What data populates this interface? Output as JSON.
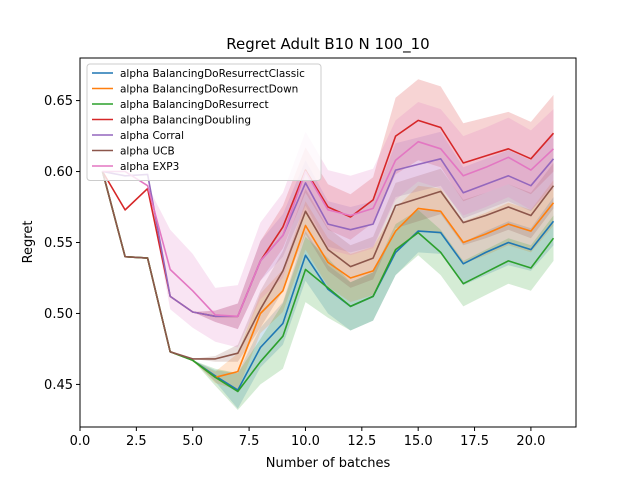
{
  "chart_data": {
    "type": "line",
    "title": "Regret Adult B10 N 100_10",
    "xlabel": "Number of batches",
    "ylabel": "Regret",
    "xlim": [
      0,
      22
    ],
    "ylim": [
      0.42,
      0.68
    ],
    "xticks": [
      0.0,
      2.5,
      5.0,
      7.5,
      10.0,
      12.5,
      15.0,
      17.5,
      20.0
    ],
    "xtick_labels": [
      "0.0",
      "2.5",
      "5.0",
      "7.5",
      "10.0",
      "12.5",
      "15.0",
      "17.5",
      "20.0"
    ],
    "yticks": [
      0.45,
      0.5,
      0.55,
      0.6,
      0.65
    ],
    "ytick_labels": [
      "0.45",
      "0.50",
      "0.55",
      "0.60",
      "0.65"
    ],
    "grid": false,
    "legend_position": "top-left",
    "x": [
      1,
      2,
      3,
      4,
      5,
      6,
      7,
      8,
      9,
      10,
      11,
      12,
      13,
      14,
      15,
      16,
      17,
      18,
      19,
      20,
      21
    ],
    "series": [
      {
        "name": "alpha BalancingDoResurrectClassic",
        "color": "#1f77b4",
        "values": [
          0.6,
          0.54,
          0.539,
          0.473,
          0.467,
          0.456,
          0.446,
          0.476,
          0.493,
          0.541,
          0.517,
          0.505,
          0.512,
          0.543,
          0.558,
          0.557,
          0.535,
          0.543,
          0.55,
          0.545,
          0.565
        ],
        "lower": [
          0.6,
          0.54,
          0.539,
          0.473,
          0.467,
          0.452,
          0.433,
          0.462,
          0.478,
          0.523,
          0.5,
          0.488,
          0.495,
          0.527,
          0.543,
          0.542,
          0.52,
          0.527,
          0.534,
          0.53,
          0.548
        ],
        "upper": [
          0.6,
          0.54,
          0.539,
          0.473,
          0.467,
          0.46,
          0.458,
          0.49,
          0.508,
          0.558,
          0.534,
          0.522,
          0.529,
          0.559,
          0.573,
          0.572,
          0.55,
          0.558,
          0.565,
          0.56,
          0.582
        ]
      },
      {
        "name": "alpha BalancingDoResurrectDown",
        "color": "#ff7f0e",
        "values": [
          0.6,
          0.54,
          0.539,
          0.473,
          0.467,
          0.455,
          0.459,
          0.5,
          0.516,
          0.562,
          0.536,
          0.525,
          0.53,
          0.558,
          0.574,
          0.572,
          0.55,
          0.556,
          0.563,
          0.558,
          0.578
        ],
        "lower": [
          0.6,
          0.54,
          0.539,
          0.473,
          0.467,
          0.451,
          0.446,
          0.486,
          0.501,
          0.545,
          0.519,
          0.508,
          0.513,
          0.542,
          0.558,
          0.556,
          0.535,
          0.541,
          0.548,
          0.543,
          0.562
        ],
        "upper": [
          0.6,
          0.54,
          0.539,
          0.473,
          0.467,
          0.459,
          0.472,
          0.514,
          0.531,
          0.579,
          0.553,
          0.542,
          0.547,
          0.574,
          0.59,
          0.588,
          0.565,
          0.571,
          0.578,
          0.573,
          0.594
        ]
      },
      {
        "name": "alpha BalancingDoResurrect",
        "color": "#2ca02c",
        "values": [
          0.6,
          0.54,
          0.539,
          0.473,
          0.467,
          0.455,
          0.445,
          0.466,
          0.484,
          0.531,
          0.518,
          0.505,
          0.512,
          0.545,
          0.557,
          0.543,
          0.521,
          0.529,
          0.537,
          0.532,
          0.553
        ],
        "lower": [
          0.6,
          0.54,
          0.539,
          0.473,
          0.467,
          0.449,
          0.432,
          0.45,
          0.461,
          0.508,
          0.497,
          0.488,
          0.495,
          0.527,
          0.541,
          0.527,
          0.505,
          0.513,
          0.521,
          0.516,
          0.537
        ],
        "upper": [
          0.6,
          0.54,
          0.539,
          0.473,
          0.467,
          0.461,
          0.458,
          0.482,
          0.507,
          0.554,
          0.539,
          0.522,
          0.529,
          0.563,
          0.573,
          0.559,
          0.537,
          0.545,
          0.553,
          0.548,
          0.569
        ]
      },
      {
        "name": "alpha BalancingDoubling",
        "color": "#d62728",
        "values": [
          0.6,
          0.573,
          0.588,
          0.512,
          0.501,
          0.498,
          0.498,
          0.537,
          0.561,
          0.601,
          0.575,
          0.568,
          0.58,
          0.625,
          0.636,
          0.631,
          0.606,
          0.611,
          0.616,
          0.609,
          0.627
        ],
        "lower": [
          0.6,
          0.573,
          0.588,
          0.512,
          0.501,
          0.494,
          0.489,
          0.523,
          0.546,
          0.585,
          0.559,
          0.552,
          0.564,
          0.598,
          0.608,
          0.603,
          0.579,
          0.585,
          0.591,
          0.584,
          0.6
        ],
        "upper": [
          0.6,
          0.573,
          0.588,
          0.512,
          0.501,
          0.502,
          0.507,
          0.551,
          0.576,
          0.617,
          0.591,
          0.584,
          0.596,
          0.652,
          0.665,
          0.66,
          0.634,
          0.638,
          0.642,
          0.635,
          0.654
        ]
      },
      {
        "name": "alpha Corral",
        "color": "#9467bd",
        "values": [
          0.6,
          0.597,
          0.598,
          0.512,
          0.501,
          0.498,
          0.498,
          0.537,
          0.555,
          0.592,
          0.563,
          0.559,
          0.563,
          0.601,
          0.605,
          0.609,
          0.585,
          0.591,
          0.597,
          0.59,
          0.609
        ],
        "lower": [
          0.6,
          0.597,
          0.598,
          0.512,
          0.501,
          0.494,
          0.489,
          0.523,
          0.54,
          0.576,
          0.547,
          0.543,
          0.547,
          0.582,
          0.586,
          0.59,
          0.567,
          0.573,
          0.579,
          0.572,
          0.591
        ],
        "upper": [
          0.6,
          0.597,
          0.598,
          0.512,
          0.501,
          0.502,
          0.507,
          0.551,
          0.57,
          0.608,
          0.579,
          0.575,
          0.579,
          0.62,
          0.624,
          0.628,
          0.603,
          0.609,
          0.615,
          0.608,
          0.627
        ]
      },
      {
        "name": "alpha UCB",
        "color": "#8c564b",
        "values": [
          0.6,
          0.54,
          0.539,
          0.473,
          0.468,
          0.468,
          0.472,
          0.503,
          0.53,
          0.572,
          0.545,
          0.533,
          0.539,
          0.576,
          0.581,
          0.586,
          0.564,
          0.569,
          0.575,
          0.569,
          0.59
        ],
        "lower": [
          0.6,
          0.54,
          0.539,
          0.473,
          0.468,
          0.466,
          0.466,
          0.49,
          0.516,
          0.556,
          0.53,
          0.518,
          0.524,
          0.56,
          0.565,
          0.57,
          0.548,
          0.553,
          0.559,
          0.553,
          0.574
        ],
        "upper": [
          0.6,
          0.54,
          0.539,
          0.473,
          0.468,
          0.47,
          0.478,
          0.516,
          0.544,
          0.588,
          0.56,
          0.548,
          0.554,
          0.592,
          0.597,
          0.602,
          0.58,
          0.585,
          0.591,
          0.585,
          0.606
        ]
      },
      {
        "name": "alpha EXP3",
        "color": "#e377c2",
        "values": [
          0.6,
          0.6,
          0.59,
          0.531,
          0.516,
          0.499,
          0.498,
          0.537,
          0.555,
          0.6,
          0.573,
          0.569,
          0.574,
          0.608,
          0.621,
          0.616,
          0.597,
          0.603,
          0.61,
          0.601,
          0.616
        ],
        "lower": [
          0.6,
          0.6,
          0.59,
          0.503,
          0.49,
          0.48,
          0.476,
          0.51,
          0.525,
          0.572,
          0.545,
          0.541,
          0.546,
          0.58,
          0.593,
          0.588,
          0.569,
          0.575,
          0.582,
          0.573,
          0.588
        ],
        "upper": [
          0.6,
          0.6,
          0.59,
          0.559,
          0.542,
          0.518,
          0.52,
          0.564,
          0.585,
          0.628,
          0.601,
          0.597,
          0.602,
          0.636,
          0.649,
          0.644,
          0.625,
          0.631,
          0.638,
          0.629,
          0.644
        ]
      }
    ]
  }
}
